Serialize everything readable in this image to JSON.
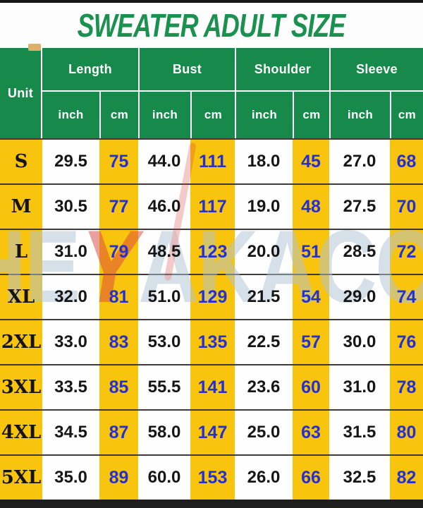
{
  "title": "SWEATER ADULT SIZE",
  "header": {
    "unit": "Unit",
    "groups": [
      "Length",
      "Bust",
      "Shoulder",
      "Sleeve"
    ],
    "sub": [
      "inch",
      "cm"
    ]
  },
  "chart_data": {
    "type": "table",
    "title": "SWEATER ADULT SIZE",
    "columns": [
      "Unit",
      "Length inch",
      "Length cm",
      "Bust inch",
      "Bust cm",
      "Shoulder inch",
      "Shoulder cm",
      "Sleeve inch",
      "Sleeve cm"
    ],
    "rows": [
      [
        "S",
        "29.5",
        "75",
        "44.0",
        "111",
        "18.0",
        "45",
        "27.0",
        "68"
      ],
      [
        "M",
        "30.5",
        "77",
        "46.0",
        "117",
        "19.0",
        "48",
        "27.5",
        "70"
      ],
      [
        "L",
        "31.0",
        "79",
        "48.5",
        "123",
        "20.0",
        "51",
        "28.5",
        "72"
      ],
      [
        "XL",
        "32.0",
        "81",
        "51.0",
        "129",
        "21.5",
        "54",
        "29.0",
        "74"
      ],
      [
        "2XL",
        "33.0",
        "83",
        "53.0",
        "135",
        "22.5",
        "57",
        "30.0",
        "76"
      ],
      [
        "3XL",
        "33.5",
        "85",
        "55.5",
        "141",
        "23.6",
        "60",
        "31.0",
        "78"
      ],
      [
        "4XL",
        "34.5",
        "87",
        "58.0",
        "147",
        "25.0",
        "63",
        "31.5",
        "80"
      ],
      [
        "5XL",
        "35.0",
        "89",
        "60.0",
        "153",
        "26.0",
        "66",
        "32.5",
        "82"
      ]
    ]
  },
  "watermark": {
    "left": "THE",
    "mark": "Y",
    "right": "AKACOM"
  },
  "colors": {
    "green": "#17894A",
    "title_green": "#1B9150",
    "yellow": "#F9C40E",
    "blue": "#2531CE",
    "watermark_gray": "#AFC2D4",
    "watermark_red": "#D8423C"
  }
}
